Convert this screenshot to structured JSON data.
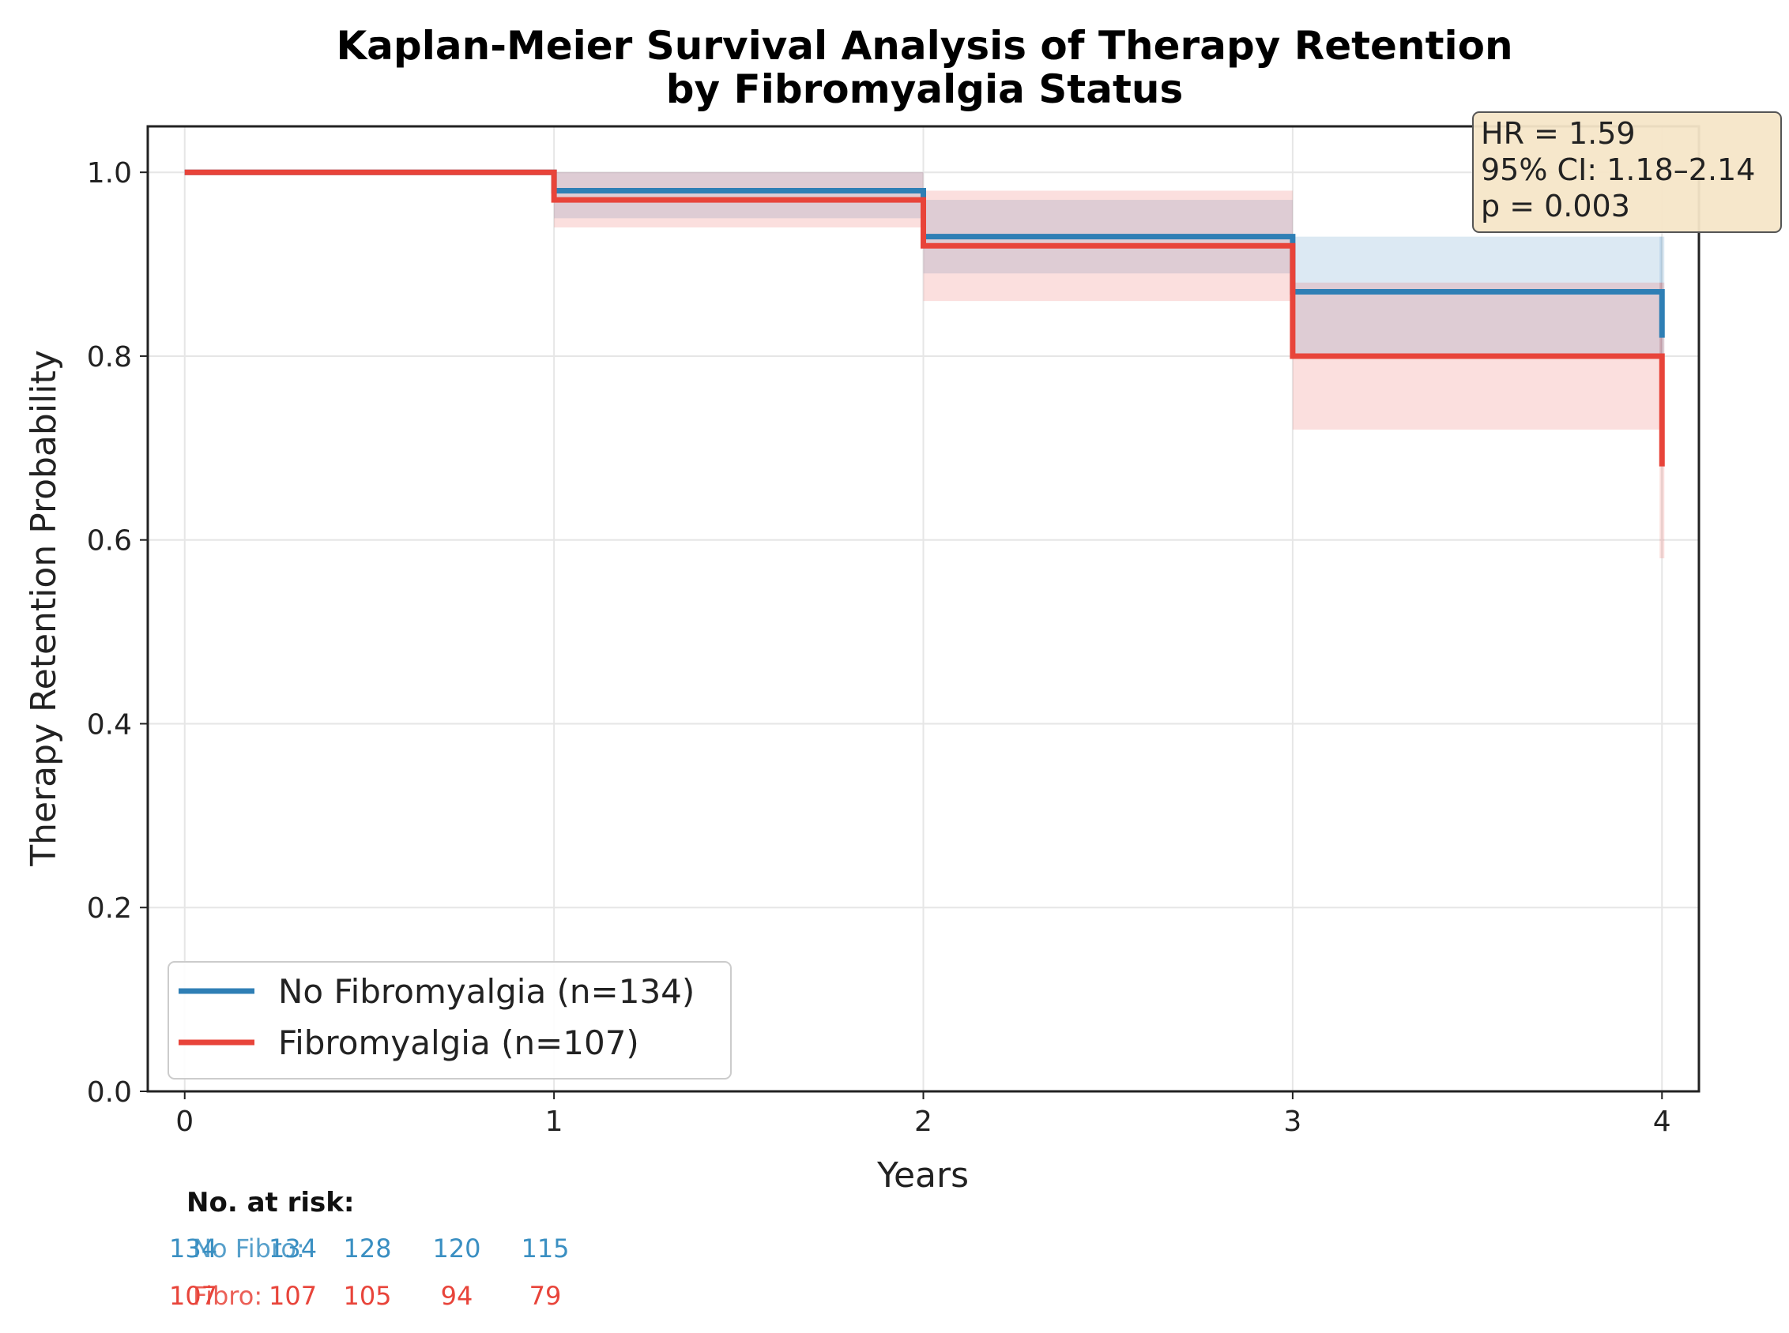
{
  "chart_data": {
    "type": "line",
    "title_line1": "Kaplan-Meier Survival Analysis of Therapy Retention",
    "title_line2": "by Fibromyalgia Status",
    "xlabel": "Years",
    "ylabel": "Therapy Retention Probability",
    "xlim": [
      -0.1,
      4.1
    ],
    "ylim": [
      0.0,
      1.05
    ],
    "x_ticks": [
      0,
      1,
      2,
      3,
      4
    ],
    "x_tick_labels": [
      "0",
      "1",
      "2",
      "3",
      "4"
    ],
    "y_ticks": [
      0.0,
      0.2,
      0.4,
      0.6,
      0.8,
      1.0
    ],
    "y_tick_labels": [
      "0.0",
      "0.2",
      "0.4",
      "0.6",
      "0.8",
      "1.0"
    ],
    "grid": true,
    "legend_position": "lower-left",
    "series": [
      {
        "name": "No Fibromyalgia (n=134)",
        "color": "#2f7fb5",
        "step_x": [
          0,
          1,
          2,
          3,
          4
        ],
        "step_y": [
          1.0,
          0.98,
          0.93,
          0.87,
          0.82
        ],
        "ci_lower": [
          1.0,
          0.95,
          0.89,
          0.8,
          0.8
        ],
        "ci_upper": [
          1.0,
          1.0,
          0.97,
          0.93,
          0.93
        ]
      },
      {
        "name": "Fibromyalgia (n=107)",
        "color": "#e8443a",
        "step_x": [
          0,
          1,
          2,
          3,
          4
        ],
        "step_y": [
          1.0,
          0.97,
          0.92,
          0.8,
          0.68
        ],
        "ci_lower": [
          1.0,
          0.94,
          0.86,
          0.72,
          0.58
        ],
        "ci_upper": [
          1.0,
          1.0,
          0.98,
          0.88,
          0.88
        ]
      }
    ],
    "stats_box": {
      "line1": "HR = 1.59",
      "line2": "95% CI: 1.18–2.14",
      "line3": "p = 0.003"
    },
    "risk_table": {
      "title": "No. at risk:",
      "rows": [
        {
          "label": "No Fibro",
          "color": "#3a8fc2",
          "overlap_text": "134",
          "values": [
            "134",
            "128",
            "120",
            "115"
          ]
        },
        {
          "label": "Fibro",
          "color": "#e8443a",
          "overlap_text": "107",
          "values": [
            "107",
            "105",
            "94",
            "79"
          ]
        }
      ]
    }
  }
}
